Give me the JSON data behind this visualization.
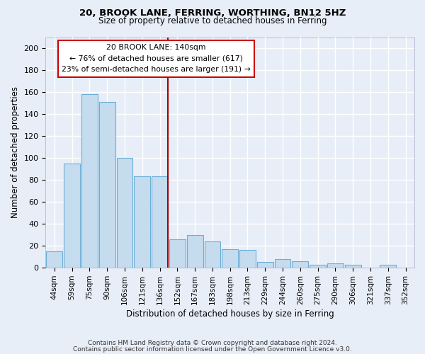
{
  "title1": "20, BROOK LANE, FERRING, WORTHING, BN12 5HZ",
  "title2": "Size of property relative to detached houses in Ferring",
  "xlabel": "Distribution of detached houses by size in Ferring",
  "ylabel": "Number of detached properties",
  "bar_labels": [
    "44sqm",
    "59sqm",
    "75sqm",
    "90sqm",
    "106sqm",
    "121sqm",
    "136sqm",
    "152sqm",
    "167sqm",
    "183sqm",
    "198sqm",
    "213sqm",
    "229sqm",
    "244sqm",
    "260sqm",
    "275sqm",
    "290sqm",
    "306sqm",
    "321sqm",
    "337sqm",
    "352sqm"
  ],
  "bar_values": [
    15,
    95,
    158,
    151,
    100,
    83,
    83,
    26,
    30,
    24,
    17,
    16,
    5,
    8,
    6,
    3,
    4,
    3,
    0,
    3,
    0
  ],
  "bar_color": "#c5dcee",
  "bar_edge_color": "#6baed6",
  "highlight_index": 6,
  "highlight_line_color": "#aa0000",
  "annotation_title": "20 BROOK LANE: 140sqm",
  "annotation_line1": "← 76% of detached houses are smaller (617)",
  "annotation_line2": "23% of semi-detached houses are larger (191) →",
  "annotation_box_facecolor": "#ffffff",
  "annotation_box_edgecolor": "#cc0000",
  "ylim": [
    0,
    210
  ],
  "yticks": [
    0,
    20,
    40,
    60,
    80,
    100,
    120,
    140,
    160,
    180,
    200
  ],
  "footer1": "Contains HM Land Registry data © Crown copyright and database right 2024.",
  "footer2": "Contains public sector information licensed under the Open Government Licence v3.0.",
  "background_color": "#e8eef8",
  "grid_color": "#ffffff"
}
